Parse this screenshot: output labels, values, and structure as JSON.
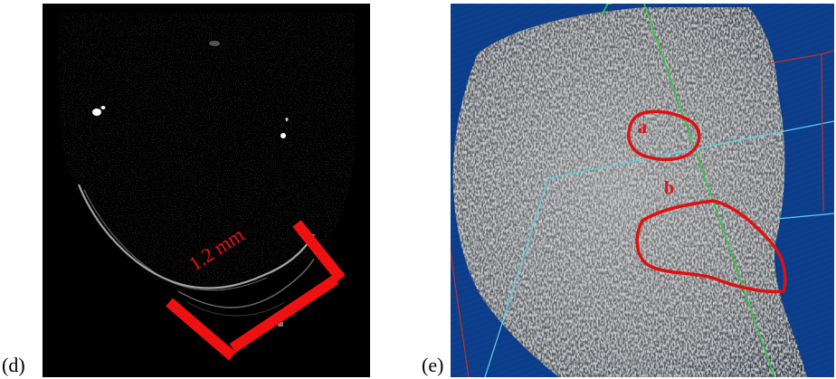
{
  "figure": {
    "panel_d": {
      "label": "(d)",
      "measurement_text": "1.2 mm",
      "colors": {
        "annotation": "#ee1111",
        "background": "#000000"
      }
    },
    "panel_e": {
      "label": "(e)",
      "region_a_label": "a",
      "region_b_label": "b",
      "colors": {
        "annotation": "#e01010",
        "background": "#0b3d8a",
        "axis_green": "#2ecc40",
        "axis_cyan": "#5fd3e8",
        "axis_red": "#c0302a"
      }
    }
  }
}
